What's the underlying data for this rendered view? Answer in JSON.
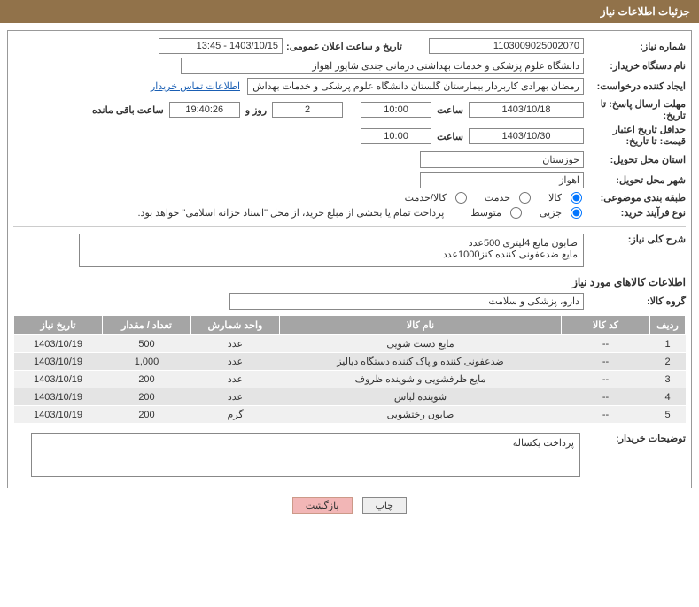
{
  "header": {
    "title": "جزئیات اطلاعات نیاز"
  },
  "fields": {
    "need_no_label": "شماره نیاز:",
    "need_no": "1103009025002070",
    "announce_label": "تاریخ و ساعت اعلان عمومی:",
    "announce_value": "1403/10/15 - 13:45",
    "buyer_label": "نام دستگاه خریدار:",
    "buyer_value": "دانشگاه علوم پزشکی و خدمات بهداشتی درمانی جندی شاپور اهواز",
    "requester_label": "ایجاد کننده درخواست:",
    "requester_value": "رمضان بهرادی کاربردار بیمارستان گلستان دانشگاه علوم پزشکی و خدمات بهداش",
    "contact_link": "اطلاعات تماس خریدار",
    "deadline_label": "مهلت ارسال پاسخ: تا تاریخ:",
    "deadline_date": "1403/10/18",
    "time_label": "ساعت",
    "deadline_time": "10:00",
    "day_count": "2",
    "day_word": "روز و",
    "remaining_time": "19:40:26",
    "remaining_label": "ساعت باقی مانده",
    "min_valid_label": "حداقل تاریخ اعتبار قیمت: تا تاریخ:",
    "min_valid_date": "1403/10/30",
    "min_valid_time": "10:00",
    "province_label": "استان محل تحویل:",
    "province": "خوزستان",
    "city_label": "شهر محل تحویل:",
    "city": "اهواز",
    "category_label": "طبقه بندی موضوعی:",
    "cat_goods": "کالا",
    "cat_service": "خدمت",
    "cat_goods_service": "کالا/خدمت",
    "process_label": "نوع فرآیند خرید:",
    "proc_small": "جزیی",
    "proc_medium": "متوسط",
    "process_note": "پرداخت تمام یا بخشی از مبلغ خرید، از محل \"اسناد خزانه اسلامی\" خواهد بود."
  },
  "general": {
    "desc_label": "شرح کلی نیاز:",
    "line1": "صابون مایع 4لیتری 500عدد",
    "line2": "مایع ضدعفونی کننده کنز1000عدد"
  },
  "goods_section": "اطلاعات کالاهای مورد نیاز",
  "group_label": "گروه کالا:",
  "group_value": "دارو، پزشکی و سلامت",
  "table": {
    "headers": {
      "row": "ردیف",
      "code": "کد کالا",
      "name": "نام کالا",
      "unit": "واحد شمارش",
      "qty": "تعداد / مقدار",
      "date": "تاریخ نیاز"
    },
    "rows": [
      {
        "n": "1",
        "code": "--",
        "name": "مایع دست شویی",
        "unit": "عدد",
        "qty": "500",
        "date": "1403/10/19"
      },
      {
        "n": "2",
        "code": "--",
        "name": "ضدعفونی کننده و پاک کننده دستگاه دیالیز",
        "unit": "عدد",
        "qty": "1,000",
        "date": "1403/10/19"
      },
      {
        "n": "3",
        "code": "--",
        "name": "مایع ظرفشویی و شوینده ظروف",
        "unit": "عدد",
        "qty": "200",
        "date": "1403/10/19"
      },
      {
        "n": "4",
        "code": "--",
        "name": "شوینده لباس",
        "unit": "عدد",
        "qty": "200",
        "date": "1403/10/19"
      },
      {
        "n": "5",
        "code": "--",
        "name": "صابون رختشویی",
        "unit": "گرم",
        "qty": "200",
        "date": "1403/10/19"
      }
    ]
  },
  "notes_label": "توضیحات خریدار:",
  "notes_value": "پرداخت یکساله",
  "buttons": {
    "print": "چاپ",
    "back": "بازگشت"
  },
  "colors": {
    "header_bg": "#91724a",
    "th_bg": "#a5a5a5",
    "btn_back_bg": "#f2b6b6",
    "link": "#1a5fb4"
  }
}
